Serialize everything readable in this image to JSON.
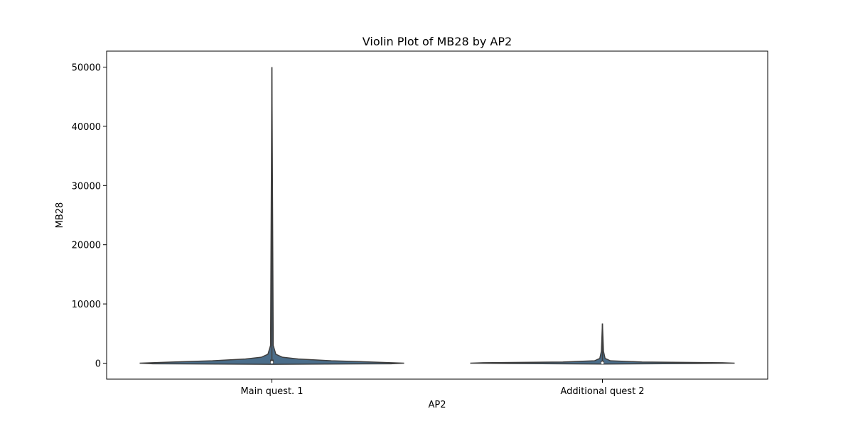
{
  "chart_data": {
    "type": "violin",
    "title": "Violin Plot of MB28 by AP2",
    "xlabel": "AP2",
    "ylabel": "MB28",
    "categories": [
      "Main quest. 1",
      "Additional quest 2"
    ],
    "ylim": [
      -2700,
      52700
    ],
    "yticks": [
      0,
      10000,
      20000,
      30000,
      40000,
      50000
    ],
    "grid": false,
    "violins": [
      {
        "category": "Main quest. 1",
        "min": 0,
        "max": 50000,
        "q1": 0,
        "median": 150,
        "q3": 600,
        "whisker_high": 1200,
        "density": [
          [
            -200,
            0.0
          ],
          [
            -100,
            0.9
          ],
          [
            0,
            1.0
          ],
          [
            200,
            0.75
          ],
          [
            400,
            0.45
          ],
          [
            700,
            0.2
          ],
          [
            1000,
            0.08
          ],
          [
            1500,
            0.03
          ],
          [
            3000,
            0.01
          ],
          [
            50000,
            0.0
          ]
        ]
      },
      {
        "category": "Additional quest 2",
        "min": 0,
        "max": 6700,
        "q1": 0,
        "median": 50,
        "q3": 400,
        "whisker_high": 2000,
        "density": [
          [
            -150,
            0.0
          ],
          [
            -60,
            0.7
          ],
          [
            0,
            1.0
          ],
          [
            80,
            0.9
          ],
          [
            200,
            0.3
          ],
          [
            400,
            0.06
          ],
          [
            800,
            0.02
          ],
          [
            2000,
            0.008
          ],
          [
            6700,
            0.0
          ]
        ]
      }
    ],
    "colors": {
      "violin_fill": "#4a6d8a",
      "outline": "#3f3f3f",
      "box": "#3f3f3f",
      "median": "#ffffff"
    }
  }
}
